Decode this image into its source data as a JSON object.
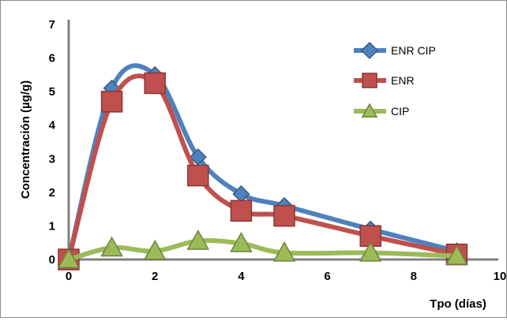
{
  "chart_data": {
    "type": "line",
    "title": "",
    "xlabel": "Tpo (días)",
    "ylabel": "Concentración (µg/g)",
    "xlim": [
      0,
      10
    ],
    "ylim": [
      0,
      7
    ],
    "xticks": [
      0,
      2,
      4,
      6,
      8,
      10
    ],
    "yticks": [
      0,
      1,
      2,
      3,
      4,
      5,
      6,
      7
    ],
    "grid": false,
    "legend_position": "top-right",
    "series": [
      {
        "name": "ENR CIP",
        "color": "#4f81bd",
        "marker": "diamond",
        "x": [
          0,
          1,
          2,
          3,
          4,
          5,
          7,
          9
        ],
        "y": [
          0.0,
          5.1,
          5.5,
          3.05,
          1.95,
          1.6,
          0.9,
          0.25
        ]
      },
      {
        "name": "ENR",
        "color": "#c0504d",
        "marker": "square",
        "x": [
          0,
          1,
          2,
          3,
          4,
          5,
          7,
          9
        ],
        "y": [
          0.0,
          4.7,
          5.25,
          2.5,
          1.45,
          1.3,
          0.7,
          0.15
        ]
      },
      {
        "name": "CIP",
        "color": "#9bbb59",
        "marker": "triangle",
        "x": [
          0,
          1,
          2,
          3,
          4,
          5,
          7,
          9
        ],
        "y": [
          0.0,
          0.35,
          0.25,
          0.55,
          0.48,
          0.2,
          0.2,
          0.1
        ]
      }
    ]
  }
}
